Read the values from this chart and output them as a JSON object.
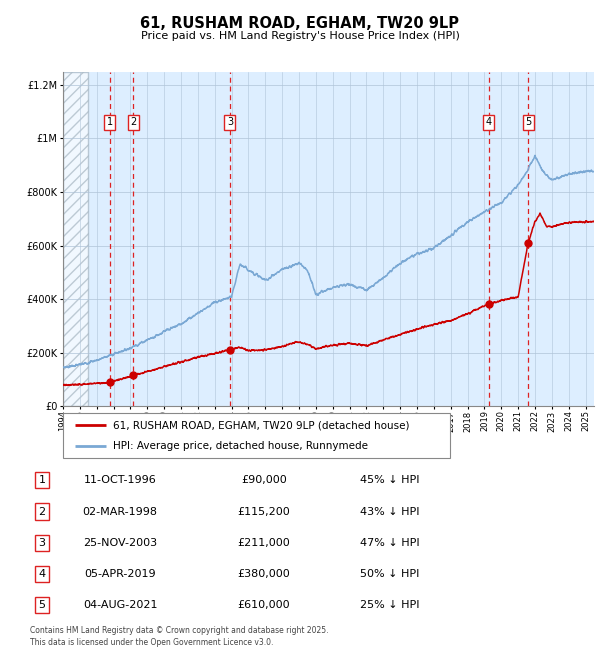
{
  "title": "61, RUSHAM ROAD, EGHAM, TW20 9LP",
  "subtitle": "Price paid vs. HM Land Registry's House Price Index (HPI)",
  "footer": "Contains HM Land Registry data © Crown copyright and database right 2025.\nThis data is licensed under the Open Government Licence v3.0.",
  "legend_line1": "61, RUSHAM ROAD, EGHAM, TW20 9LP (detached house)",
  "legend_line2": "HPI: Average price, detached house, Runnymede",
  "hpi_color": "#7aa8d4",
  "price_color": "#cc0000",
  "bg_color": "#ddeeff",
  "grid_color": "#b0c4d8",
  "dashed_color": "#dd2222",
  "sale_dates_x": [
    1996.78,
    1998.17,
    2003.9,
    2019.26,
    2021.59
  ],
  "sale_prices": [
    90000,
    115200,
    211000,
    380000,
    610000
  ],
  "sale_labels": [
    "1",
    "2",
    "3",
    "4",
    "5"
  ],
  "sale_info": [
    {
      "num": "1",
      "date": "11-OCT-1996",
      "price": "£90,000",
      "pct": "45% ↓ HPI"
    },
    {
      "num": "2",
      "date": "02-MAR-1998",
      "price": "£115,200",
      "pct": "43% ↓ HPI"
    },
    {
      "num": "3",
      "date": "25-NOV-2003",
      "price": "£211,000",
      "pct": "47% ↓ HPI"
    },
    {
      "num": "4",
      "date": "05-APR-2019",
      "price": "£380,000",
      "pct": "50% ↓ HPI"
    },
    {
      "num": "5",
      "date": "04-AUG-2021",
      "price": "£610,000",
      "pct": "25% ↓ HPI"
    }
  ],
  "ylim": [
    0,
    1250000
  ],
  "xlim": [
    1994.0,
    2025.5
  ],
  "hatch_xlim": [
    1994.0,
    1995.5
  ],
  "hpi_key_x": [
    1994,
    1995,
    1996,
    1997,
    1998,
    1999,
    2000,
    2001,
    2002,
    2003,
    2004,
    2004.5,
    2005,
    2006,
    2007,
    2008,
    2008.5,
    2009,
    2009.5,
    2010,
    2011,
    2012,
    2013,
    2014,
    2015,
    2016,
    2017,
    2018,
    2019,
    2020,
    2021.0,
    2021.5,
    2022.0,
    2022.5,
    2023,
    2023.5,
    2024,
    2025
  ],
  "hpi_key_y": [
    145000,
    155000,
    172000,
    195000,
    218000,
    248000,
    278000,
    308000,
    348000,
    388000,
    408000,
    530000,
    510000,
    470000,
    510000,
    535000,
    510000,
    415000,
    430000,
    445000,
    455000,
    435000,
    480000,
    535000,
    570000,
    590000,
    638000,
    688000,
    725000,
    760000,
    825000,
    875000,
    935000,
    875000,
    845000,
    855000,
    868000,
    878000
  ],
  "price_key_x": [
    1994.0,
    1995.0,
    1996.5,
    1996.78,
    1997.2,
    1997.8,
    1998.17,
    1999,
    2000,
    2001,
    2002,
    2003,
    2003.9,
    2004,
    2004.5,
    2005,
    2006,
    2007,
    2007.5,
    2008,
    2008.5,
    2009,
    2009.5,
    2010,
    2011,
    2012,
    2013,
    2014,
    2015,
    2016,
    2017,
    2018,
    2019.0,
    2019.26,
    2019.5,
    2020.0,
    2021.0,
    2021.59,
    2022.0,
    2022.3,
    2022.7,
    2023,
    2023.5,
    2024,
    2025
  ],
  "price_key_y": [
    78000,
    82000,
    88000,
    90000,
    96000,
    108000,
    115200,
    130000,
    148000,
    165000,
    183000,
    198000,
    211000,
    212000,
    222000,
    208000,
    210000,
    222000,
    235000,
    240000,
    230000,
    215000,
    222000,
    228000,
    235000,
    226000,
    248000,
    268000,
    288000,
    305000,
    320000,
    345000,
    375000,
    380000,
    385000,
    395000,
    408000,
    610000,
    690000,
    720000,
    670000,
    670000,
    680000,
    685000,
    690000
  ]
}
